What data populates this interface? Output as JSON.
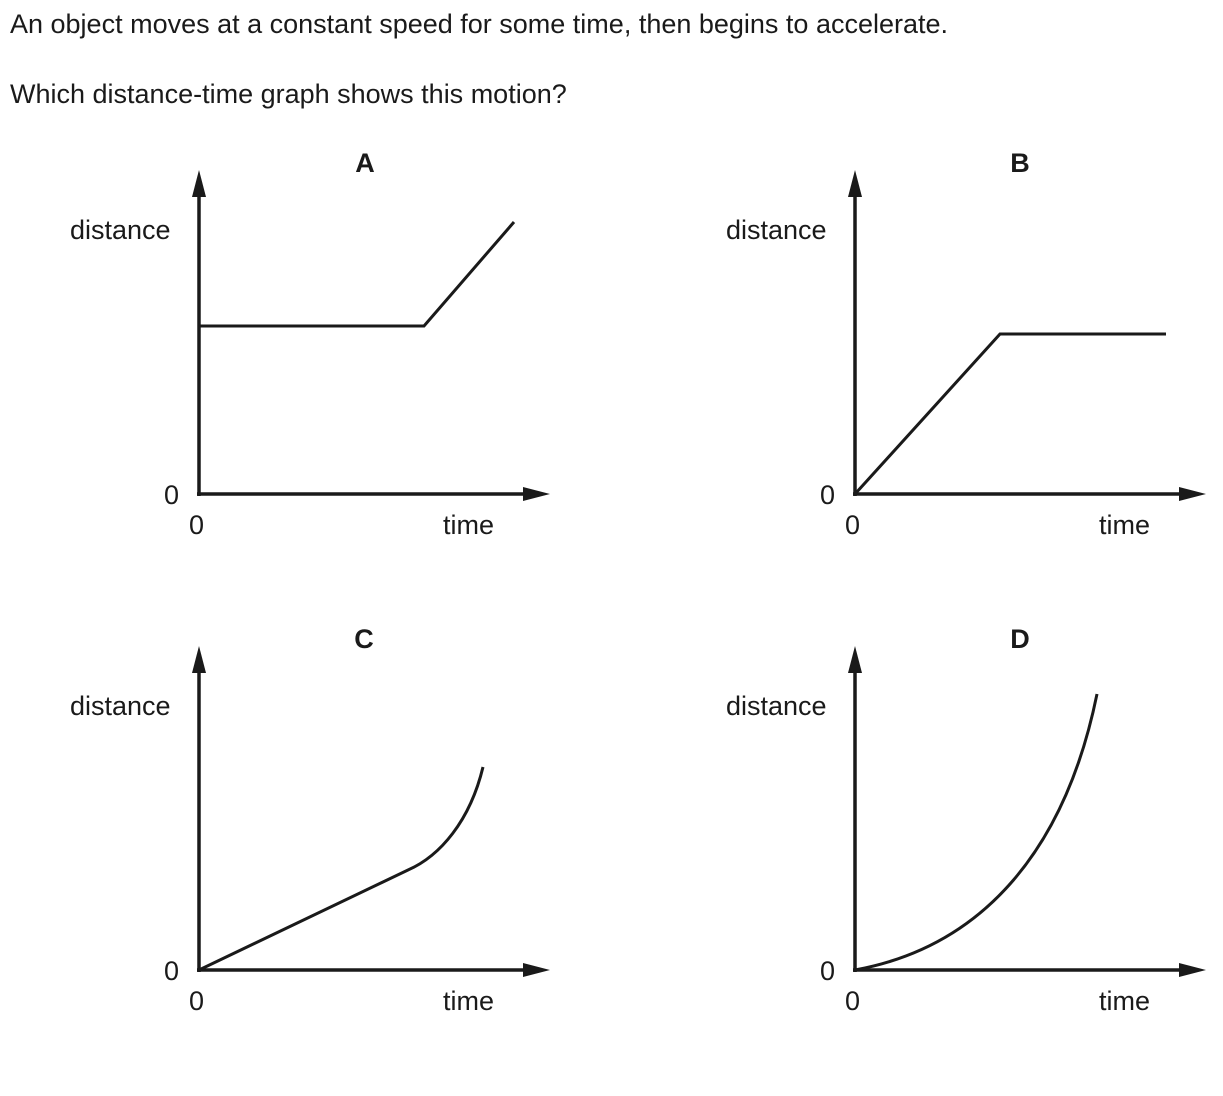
{
  "question": {
    "line1": "An object moves at a constant speed for some time, then begins to accelerate.",
    "line2": "Which distance-time graph shows this motion?"
  },
  "graphs": [
    {
      "letter": "A",
      "y_label": "distance",
      "x_label": "time",
      "origin_y": "0",
      "origin_x": "0",
      "shape": "flat-then-straight-rise"
    },
    {
      "letter": "B",
      "y_label": "distance",
      "x_label": "time",
      "origin_y": "0",
      "origin_x": "0",
      "shape": "straight-rise-then-flat"
    },
    {
      "letter": "C",
      "y_label": "distance",
      "x_label": "time",
      "origin_y": "0",
      "origin_x": "0",
      "shape": "straight-rise-then-curving-up"
    },
    {
      "letter": "D",
      "y_label": "distance",
      "x_label": "time",
      "origin_y": "0",
      "origin_x": "0",
      "shape": "curving-up-throughout"
    }
  ]
}
